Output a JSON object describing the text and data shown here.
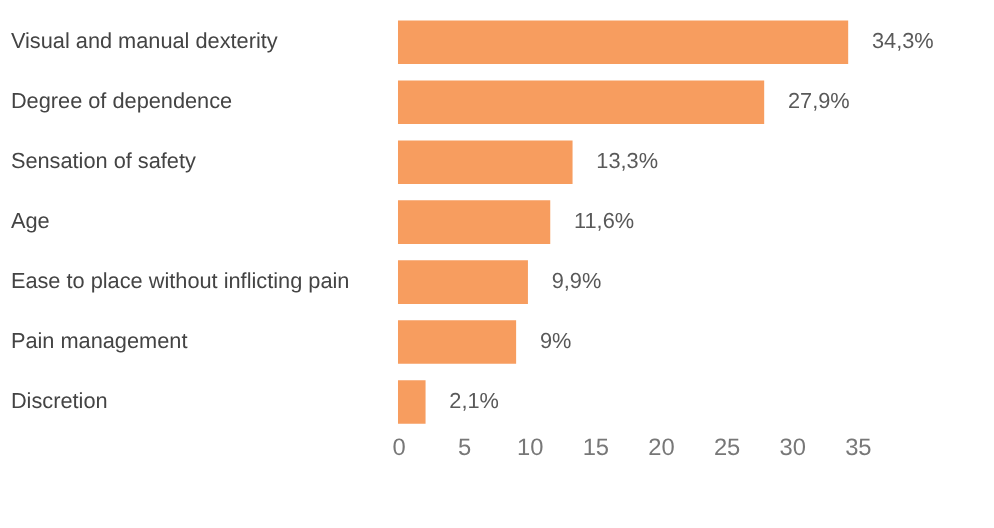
{
  "chart_data": {
    "type": "bar",
    "orientation": "horizontal",
    "categories": [
      "Visual and manual dexterity",
      "Degree of dependence",
      "Sensation of safety",
      "Age",
      "Ease to place without inflicting pain",
      "Pain management",
      "Discretion"
    ],
    "values": [
      34.3,
      27.9,
      13.3,
      11.6,
      9.9,
      9,
      2.1
    ],
    "value_labels": [
      "34,3%",
      "27,9%",
      "13,3%",
      "11,6%",
      "9,9%",
      "9%",
      "2,1%"
    ],
    "color": "#f79d5f",
    "xlim": [
      0,
      35
    ],
    "xticks": [
      0,
      5,
      10,
      15,
      20,
      25,
      30,
      35
    ],
    "grid": false
  }
}
